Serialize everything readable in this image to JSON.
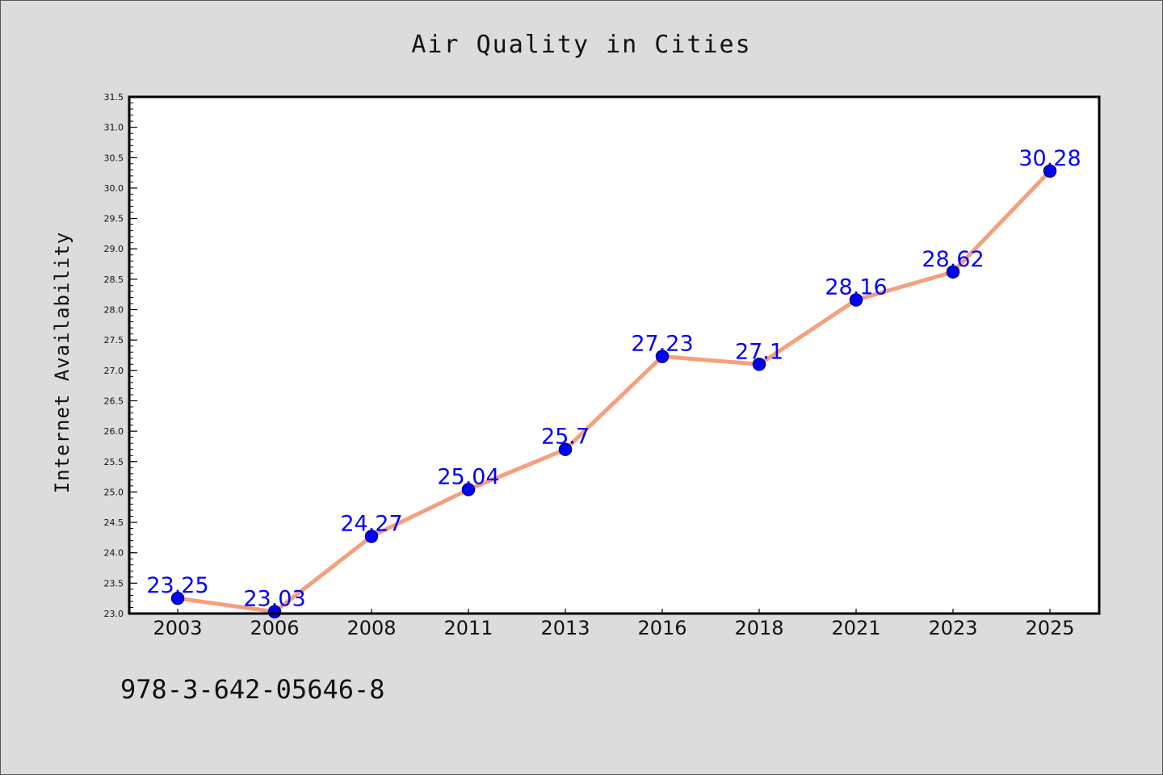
{
  "chart_data": {
    "type": "line",
    "title": "Air Quality in Cities",
    "xlabel": "",
    "ylabel": "Internet Availability",
    "categories": [
      "2003",
      "2006",
      "2008",
      "2011",
      "2013",
      "2016",
      "2018",
      "2021",
      "2023",
      "2025"
    ],
    "series": [
      {
        "values": [
          23.25,
          23.03,
          24.27,
          25.04,
          25.7,
          27.23,
          27.1,
          28.16,
          28.62,
          30.28
        ],
        "labels": [
          "23.25",
          "23.03",
          "24.27",
          "25.04",
          "25.7",
          "27.23",
          "27.1",
          "28.16",
          "28.62",
          "30.28"
        ]
      }
    ],
    "ylim": [
      23.0,
      31.5
    ],
    "yticks": [
      "23.0",
      "23.5",
      "24.0",
      "24.5",
      "25.0",
      "25.5",
      "26.0",
      "26.5",
      "27.0",
      "27.5",
      "28.0",
      "28.5",
      "29.0",
      "29.5",
      "30.0",
      "30.5",
      "31.0",
      "31.5"
    ],
    "grid": false,
    "legend": "none",
    "colors": {
      "line": "#f4a07e",
      "marker": "#0000ff",
      "marker_edge": "#00007a",
      "data_label": "#0000ff",
      "background": "#dcdcdc",
      "plot_background": "#ffffff"
    }
  },
  "footer": {
    "code": "978-3-642-05646-8"
  }
}
